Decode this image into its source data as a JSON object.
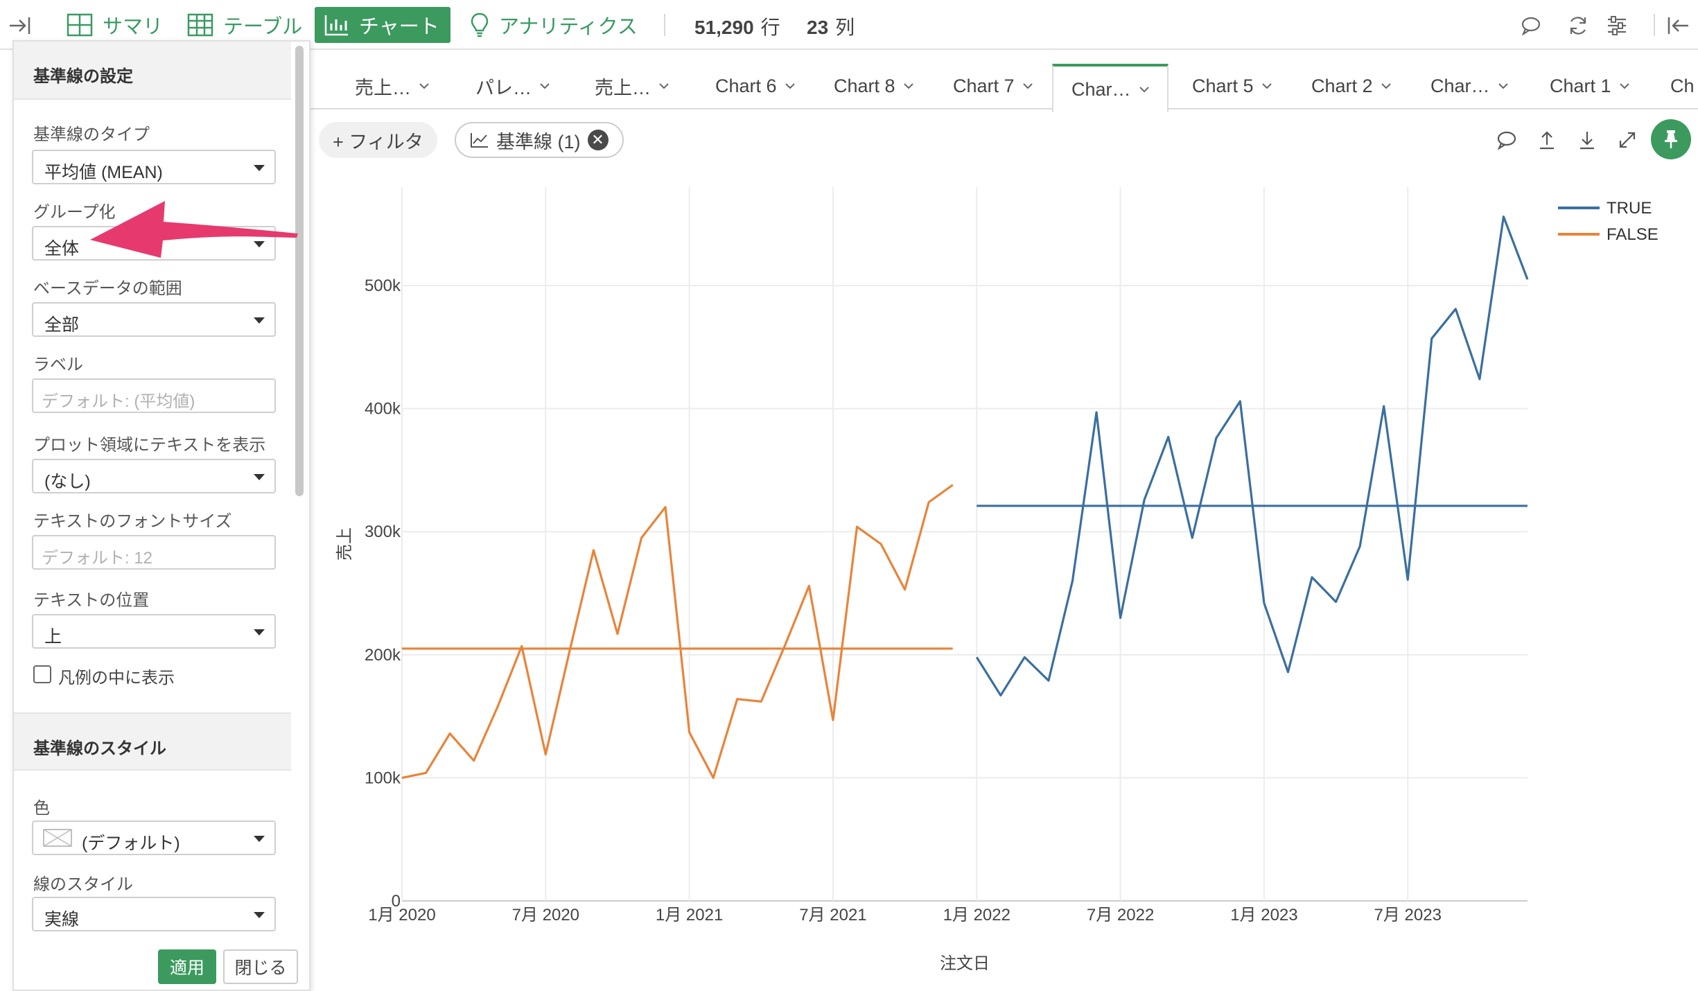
{
  "toolbar": {
    "items": [
      {
        "label": "サマリ",
        "icon": "table-grid-icon"
      },
      {
        "label": "テーブル",
        "icon": "table-icon"
      },
      {
        "label": "チャート",
        "icon": "bar-chart-icon"
      },
      {
        "label": "アナリティクス",
        "icon": "lightbulb-icon"
      }
    ],
    "rows_count": "51,290",
    "rows_unit": "行",
    "cols_count": "23",
    "cols_unit": "列"
  },
  "tabs": [
    {
      "label": "売上…"
    },
    {
      "label": "パレ…"
    },
    {
      "label": "売上…"
    },
    {
      "label": "Chart 6"
    },
    {
      "label": "Chart 8"
    },
    {
      "label": "Chart 7"
    },
    {
      "label": "Char…",
      "active": true
    },
    {
      "label": "Chart 5"
    },
    {
      "label": "Chart 2"
    },
    {
      "label": "Char…"
    },
    {
      "label": "Chart 1"
    },
    {
      "label": "Ch"
    }
  ],
  "filter_bar": {
    "add_filter_label": "+ フィルタ",
    "reference_line_label": "基準線 (1)"
  },
  "panel": {
    "section1_title": "基準線の設定",
    "type_label": "基準線のタイプ",
    "type_value": "平均値 (MEAN)",
    "group_label": "グループ化",
    "group_value": "全体",
    "range_label": "ベースデータの範囲",
    "range_value": "全部",
    "label_label": "ラベル",
    "label_placeholder": "デフォルト: (平均値)",
    "plot_text_label": "プロット領域にテキストを表示",
    "plot_text_value": "(なし)",
    "font_size_label": "テキストのフォントサイズ",
    "font_size_placeholder": "デフォルト: 12",
    "text_pos_label": "テキストの位置",
    "text_pos_value": "上",
    "legend_checkbox_label": "凡例の中に表示",
    "section2_title": "基準線のスタイル",
    "color_label": "色",
    "color_value": "(デフォルト)",
    "line_style_label": "線のスタイル",
    "line_style_value": "実線",
    "apply_label": "適用",
    "close_label": "閉じる"
  },
  "colors": {
    "accent": "#3c9a5f",
    "true_series": "#3a6fa0",
    "false_series": "#e8843a",
    "arrow": "#e63a6e"
  },
  "chart_data": {
    "type": "line",
    "xlabel": "注文日",
    "ylabel": "売上",
    "x_tick_labels": [
      "1月 2020",
      "7月 2020",
      "1月 2021",
      "7月 2021",
      "1月 2022",
      "7月 2022",
      "1月 2023",
      "7月 2023"
    ],
    "y_tick_labels": [
      "0",
      "100k",
      "200k",
      "300k",
      "400k",
      "500k"
    ],
    "ylim": [
      0,
      580000
    ],
    "legend_position": "top-right",
    "series": [
      {
        "name": "FALSE",
        "color": "#e8843a",
        "x": [
          "2020-01",
          "2020-02",
          "2020-03",
          "2020-04",
          "2020-05",
          "2020-06",
          "2020-07",
          "2020-08",
          "2020-09",
          "2020-10",
          "2020-11",
          "2020-12",
          "2021-01",
          "2021-02",
          "2021-03",
          "2021-04",
          "2021-05",
          "2021-06",
          "2021-07",
          "2021-08",
          "2021-09",
          "2021-10",
          "2021-11",
          "2021-12"
        ],
        "values": [
          100000,
          104000,
          136000,
          114000,
          158000,
          207000,
          119000,
          203000,
          285000,
          217000,
          295000,
          320000,
          137000,
          100000,
          164000,
          162000,
          208000,
          256000,
          147000,
          304000,
          290000,
          253000,
          324000,
          338000
        ],
        "mean": 205000
      },
      {
        "name": "TRUE",
        "color": "#3a6fa0",
        "x": [
          "2022-01",
          "2022-02",
          "2022-03",
          "2022-04",
          "2022-05",
          "2022-06",
          "2022-07",
          "2022-08",
          "2022-09",
          "2022-10",
          "2022-11",
          "2022-12",
          "2023-01",
          "2023-02",
          "2023-03",
          "2023-04",
          "2023-05",
          "2023-06",
          "2023-07",
          "2023-08",
          "2023-09",
          "2023-10",
          "2023-11",
          "2023-12"
        ],
        "values": [
          198000,
          167000,
          198000,
          179000,
          260000,
          397000,
          230000,
          326000,
          377000,
          295000,
          376000,
          406000,
          242000,
          186000,
          263000,
          243000,
          288000,
          402000,
          261000,
          457000,
          481000,
          424000,
          556000,
          505000
        ],
        "mean": 321000
      }
    ]
  }
}
